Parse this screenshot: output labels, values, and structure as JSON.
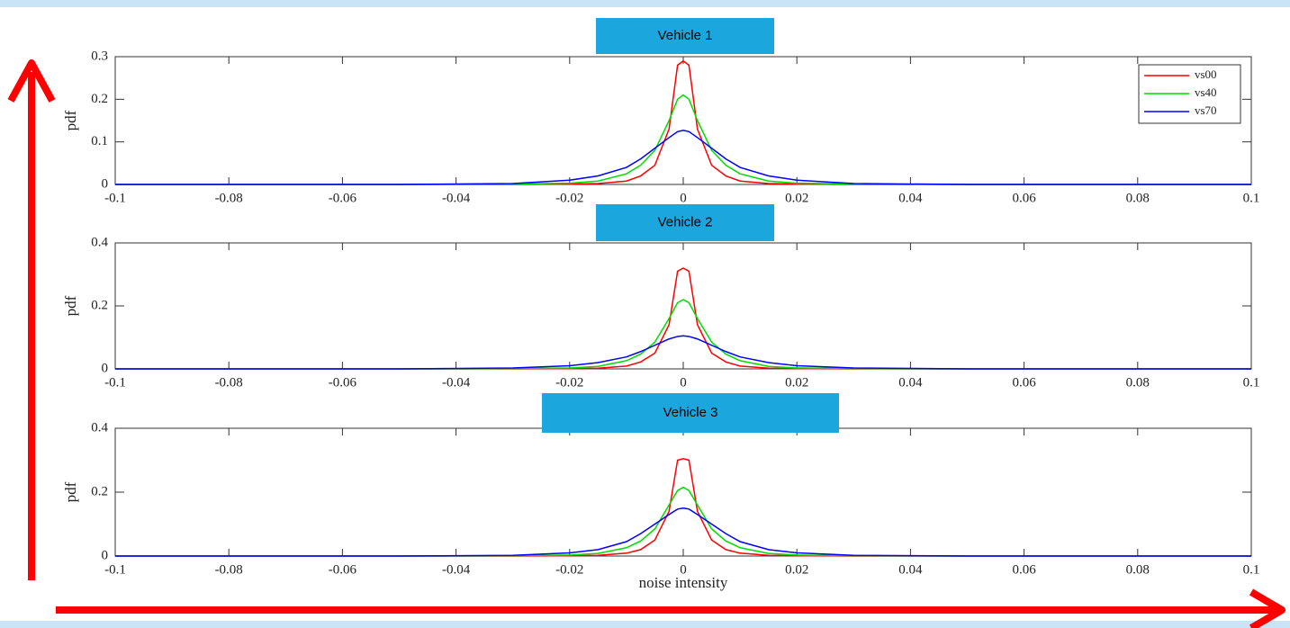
{
  "chart_data": [
    {
      "type": "line",
      "title": "Vehicle 1",
      "ylabel": "pdf",
      "x": [
        -0.1,
        -0.05,
        -0.03,
        -0.02,
        -0.015,
        -0.01,
        -0.0075,
        -0.005,
        -0.0025,
        -0.001,
        0,
        0.001,
        0.0025,
        0.005,
        0.0075,
        0.01,
        0.015,
        0.02,
        0.03,
        0.05,
        0.1
      ],
      "xlim": [
        -0.1,
        0.1
      ],
      "xticks": [
        -0.1,
        -0.08,
        -0.06,
        -0.04,
        -0.02,
        0,
        0.02,
        0.04,
        0.06,
        0.08,
        0.1
      ],
      "ylim": [
        0,
        0.3
      ],
      "yticks": [
        0,
        0.1,
        0.2,
        0.3
      ],
      "legend": "upper right",
      "series": [
        {
          "name": "vs00",
          "color": "#ff0000",
          "values": [
            0,
            0,
            0,
            0.001,
            0.002,
            0.008,
            0.02,
            0.045,
            0.13,
            0.28,
            0.29,
            0.28,
            0.13,
            0.045,
            0.02,
            0.008,
            0.002,
            0.001,
            0,
            0,
            0
          ]
        },
        {
          "name": "vs40",
          "color": "#00dd00",
          "values": [
            0,
            0,
            0.001,
            0.003,
            0.008,
            0.025,
            0.045,
            0.08,
            0.15,
            0.2,
            0.21,
            0.2,
            0.15,
            0.08,
            0.045,
            0.025,
            0.008,
            0.003,
            0.001,
            0,
            0
          ]
        },
        {
          "name": "vs70",
          "color": "#0000ff",
          "values": [
            0,
            0,
            0.002,
            0.01,
            0.02,
            0.04,
            0.06,
            0.085,
            0.11,
            0.124,
            0.127,
            0.124,
            0.11,
            0.085,
            0.06,
            0.04,
            0.02,
            0.01,
            0.002,
            0,
            0
          ]
        }
      ]
    },
    {
      "type": "line",
      "title": "Vehicle 2",
      "ylabel": "pdf",
      "x": [
        -0.1,
        -0.05,
        -0.03,
        -0.02,
        -0.015,
        -0.01,
        -0.0075,
        -0.005,
        -0.0025,
        -0.001,
        0,
        0.001,
        0.0025,
        0.005,
        0.0075,
        0.01,
        0.015,
        0.02,
        0.03,
        0.05,
        0.1
      ],
      "xlim": [
        -0.1,
        0.1
      ],
      "xticks": [
        -0.1,
        -0.08,
        -0.06,
        -0.04,
        -0.02,
        0,
        0.02,
        0.04,
        0.06,
        0.08,
        0.1
      ],
      "ylim": [
        0,
        0.4
      ],
      "yticks": [
        0,
        0.2,
        0.4
      ],
      "series": [
        {
          "color": "#ff0000",
          "values": [
            0,
            0,
            0,
            0.001,
            0.002,
            0.009,
            0.022,
            0.05,
            0.14,
            0.31,
            0.32,
            0.31,
            0.14,
            0.05,
            0.022,
            0.009,
            0.002,
            0.001,
            0,
            0,
            0
          ]
        },
        {
          "color": "#00dd00",
          "values": [
            0,
            0,
            0.001,
            0.003,
            0.008,
            0.026,
            0.047,
            0.085,
            0.16,
            0.21,
            0.22,
            0.21,
            0.16,
            0.085,
            0.047,
            0.026,
            0.008,
            0.003,
            0.001,
            0,
            0
          ]
        },
        {
          "color": "#0000ff",
          "values": [
            0,
            0,
            0.003,
            0.01,
            0.02,
            0.038,
            0.055,
            0.075,
            0.095,
            0.103,
            0.105,
            0.103,
            0.095,
            0.075,
            0.055,
            0.038,
            0.02,
            0.01,
            0.003,
            0,
            0
          ]
        }
      ]
    },
    {
      "type": "line",
      "title": "Vehicle 3",
      "ylabel": "pdf",
      "xlabel": "noise intensity",
      "x": [
        -0.1,
        -0.05,
        -0.03,
        -0.02,
        -0.015,
        -0.01,
        -0.0075,
        -0.005,
        -0.0025,
        -0.001,
        0,
        0.001,
        0.0025,
        0.005,
        0.0075,
        0.01,
        0.015,
        0.02,
        0.03,
        0.05,
        0.1
      ],
      "xlim": [
        -0.1,
        0.1
      ],
      "xticks": [
        -0.1,
        -0.08,
        -0.06,
        -0.04,
        -0.02,
        0,
        0.02,
        0.04,
        0.06,
        0.08,
        0.1
      ],
      "ylim": [
        0,
        0.4
      ],
      "yticks": [
        0,
        0.2,
        0.4
      ],
      "series": [
        {
          "color": "#ff0000",
          "values": [
            0,
            0,
            0,
            0.001,
            0.002,
            0.009,
            0.02,
            0.05,
            0.14,
            0.3,
            0.305,
            0.3,
            0.14,
            0.05,
            0.02,
            0.009,
            0.002,
            0.001,
            0,
            0,
            0
          ]
        },
        {
          "color": "#00dd00",
          "values": [
            0,
            0,
            0.001,
            0.003,
            0.008,
            0.026,
            0.047,
            0.085,
            0.16,
            0.205,
            0.215,
            0.205,
            0.16,
            0.085,
            0.047,
            0.026,
            0.008,
            0.003,
            0.001,
            0,
            0
          ]
        },
        {
          "color": "#0000ff",
          "values": [
            0,
            0,
            0.002,
            0.01,
            0.02,
            0.045,
            0.07,
            0.1,
            0.13,
            0.147,
            0.15,
            0.147,
            0.13,
            0.1,
            0.07,
            0.045,
            0.02,
            0.01,
            0.002,
            0,
            0
          ]
        }
      ]
    }
  ]
}
